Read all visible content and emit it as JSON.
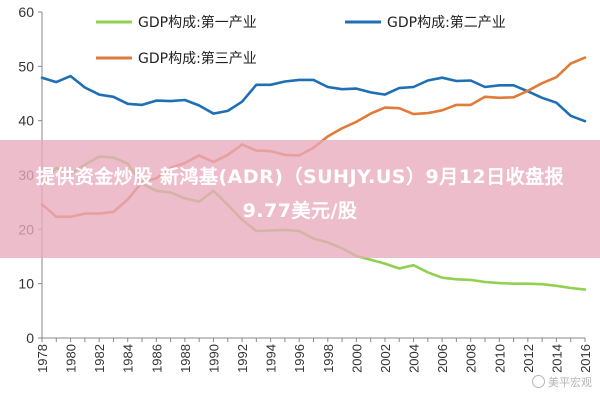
{
  "chart_data": {
    "type": "line",
    "title": "",
    "xlabel": "",
    "ylabel": "",
    "xlim": [
      1978,
      2016
    ],
    "ylim": [
      0,
      60
    ],
    "yticks": [
      0,
      10,
      20,
      30,
      40,
      50,
      60
    ],
    "xticks": [
      1978,
      1980,
      1982,
      1984,
      1986,
      1988,
      1990,
      1992,
      1994,
      1996,
      1998,
      2000,
      2002,
      2004,
      2006,
      2008,
      2010,
      2012,
      2014,
      2016
    ],
    "grid": false,
    "legend_position": "top",
    "x": [
      1978,
      1979,
      1980,
      1981,
      1982,
      1983,
      1984,
      1985,
      1986,
      1987,
      1988,
      1989,
      1990,
      1991,
      1992,
      1993,
      1994,
      1995,
      1996,
      1997,
      1998,
      1999,
      2000,
      2001,
      2002,
      2003,
      2004,
      2005,
      2006,
      2007,
      2008,
      2009,
      2010,
      2011,
      2012,
      2013,
      2014,
      2015,
      2016
    ],
    "series": [
      {
        "name": "GDP构成:第一产业",
        "color": "#92d050",
        "values": [
          28.2,
          31.3,
          30.2,
          31.9,
          33.4,
          33.2,
          32.1,
          28.4,
          27.1,
          26.8,
          25.7,
          25.1,
          27.1,
          24.5,
          21.8,
          19.7,
          19.8,
          19.9,
          19.7,
          18.3,
          17.6,
          16.5,
          15.1,
          14.4,
          13.7,
          12.8,
          13.4,
          12.1,
          11.1,
          10.8,
          10.7,
          10.3,
          10.1,
          10.0,
          10.0,
          9.9,
          9.6,
          9.2,
          8.9
        ]
      },
      {
        "name": "GDP构成:第二产业",
        "color": "#1f6fb5",
        "values": [
          47.9,
          47.1,
          48.2,
          46.1,
          44.8,
          44.4,
          43.1,
          42.9,
          43.7,
          43.6,
          43.8,
          42.8,
          41.3,
          41.8,
          43.5,
          46.6,
          46.6,
          47.2,
          47.5,
          47.5,
          46.2,
          45.8,
          45.9,
          45.2,
          44.8,
          46.0,
          46.2,
          47.4,
          47.9,
          47.3,
          47.4,
          46.2,
          46.5,
          46.5,
          45.4,
          44.2,
          43.3,
          40.9,
          39.9
        ]
      },
      {
        "name": "GDP构成:第三产业",
        "color": "#e07b39",
        "values": [
          24.6,
          22.3,
          22.3,
          22.9,
          22.9,
          23.2,
          25.5,
          28.7,
          29.4,
          31.3,
          32.2,
          33.6,
          32.4,
          33.7,
          35.6,
          34.5,
          34.4,
          33.7,
          33.6,
          35.0,
          37.1,
          38.6,
          39.8,
          41.3,
          42.4,
          42.3,
          41.2,
          41.4,
          41.9,
          42.9,
          42.9,
          44.4,
          44.2,
          44.3,
          45.5,
          46.9,
          48.0,
          50.5,
          51.6
        ]
      }
    ]
  },
  "overlay": {
    "headline": "提供资金炒股 新鸿基(ADR)（SUHJY.US）9月12日收盘报9.77美元/股",
    "watermark": "美平宏观"
  }
}
